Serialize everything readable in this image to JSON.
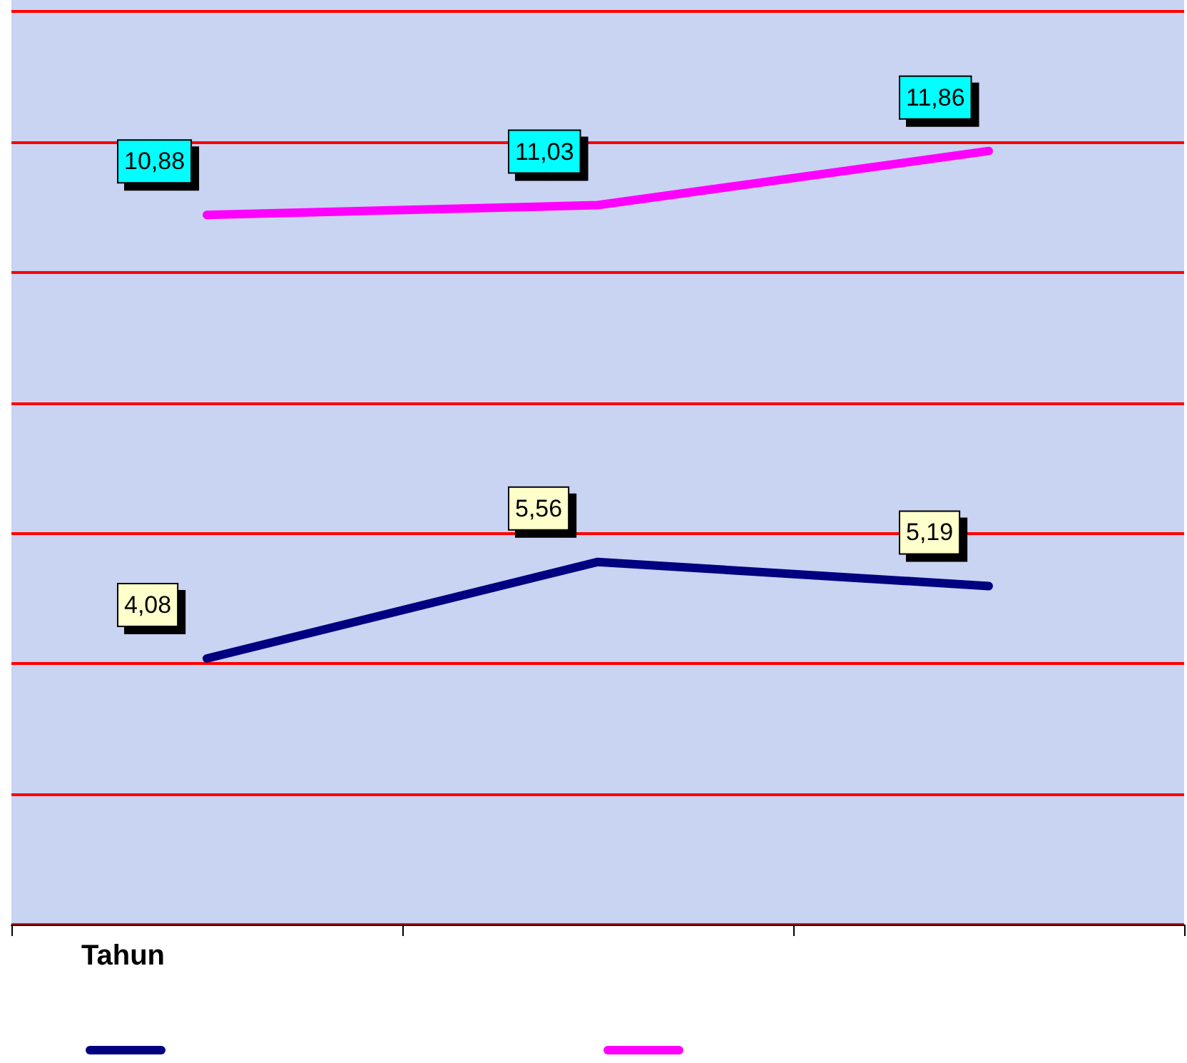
{
  "chart_data": {
    "type": "line",
    "xlabel": "Tahun",
    "categories": [
      null,
      null,
      null
    ],
    "series": [
      {
        "color": "#000080",
        "values": [
          4.08,
          5.56,
          5.19
        ],
        "value_labels": [
          "4,08",
          "5,56",
          "5,19"
        ]
      },
      {
        "color": "#ff00ff",
        "values": [
          10.88,
          11.03,
          11.86
        ],
        "value_labels": [
          "10,88",
          "11,03",
          "11,86"
        ]
      }
    ],
    "ylim": [
      0,
      14
    ],
    "yticks": [
      {
        "value": 0,
        "label": null
      },
      {
        "value": 2,
        "label": null
      },
      {
        "value": 4,
        "label": null
      },
      {
        "value": 6,
        "label": null
      },
      {
        "value": 8,
        "label": null
      },
      {
        "value": 10,
        "label": null
      },
      {
        "value": 12,
        "label": null
      },
      {
        "value": 14,
        "label": null
      }
    ],
    "grid": "y",
    "tick_labels": false,
    "marker": "none",
    "line_style": "solid"
  }
}
